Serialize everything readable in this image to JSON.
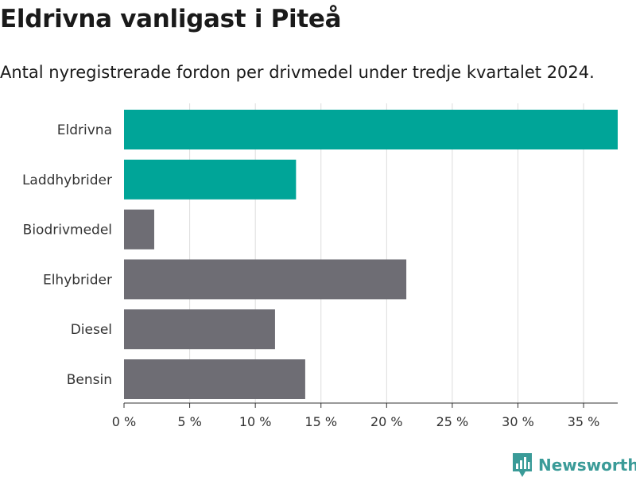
{
  "title": "Eldrivna vanligast i Piteå",
  "subtitle": "Antal nyregistrerade fordon per drivmedel under tredje kvartalet 2024.",
  "brand": {
    "name": "Newsworthy",
    "icon": "newsworthy-logo-icon",
    "color": "#3a9b98"
  },
  "colors": {
    "highlight": "#00a598",
    "default": "#6e6d74",
    "grid": "#dddddd",
    "axis": "#333333"
  },
  "chart_data": {
    "type": "bar",
    "orientation": "horizontal",
    "title": "Eldrivna vanligast i Piteå",
    "subtitle": "Antal nyregistrerade fordon per drivmedel under tredje kvartalet 2024.",
    "xlabel": "",
    "ylabel": "",
    "unit": "%",
    "categories": [
      "Eldrivna",
      "Laddhybrider",
      "Biodrivmedel",
      "Elhybrider",
      "Diesel",
      "Bensin"
    ],
    "values": [
      37.6,
      13.1,
      2.3,
      21.5,
      11.5,
      13.8
    ],
    "highlighted": [
      true,
      true,
      false,
      false,
      false,
      false
    ],
    "xlim": [
      0,
      37.6
    ],
    "ticks": [
      0,
      5,
      10,
      15,
      20,
      25,
      30,
      35
    ],
    "tick_labels": [
      "0 %",
      "5 %",
      "10 %",
      "15 %",
      "20 %",
      "25 %",
      "30 %",
      "35 %"
    ],
    "grid": true,
    "legend": "none"
  }
}
